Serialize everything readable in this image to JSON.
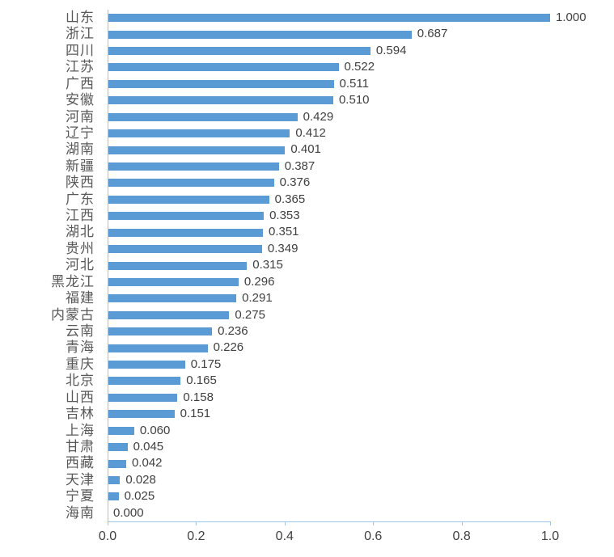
{
  "chart_data": {
    "type": "bar",
    "orientation": "horizontal",
    "title": "",
    "xlabel": "",
    "ylabel": "",
    "categories": [
      "山东",
      "浙江",
      "四川",
      "江苏",
      "广西",
      "安徽",
      "河南",
      "辽宁",
      "湖南",
      "新疆",
      "陕西",
      "广东",
      "江西",
      "湖北",
      "贵州",
      "河北",
      "黑龙江",
      "福建",
      "内蒙古",
      "云南",
      "青海",
      "重庆",
      "北京",
      "山西",
      "吉林",
      "上海",
      "甘肃",
      "西藏",
      "天津",
      "宁夏",
      "海南"
    ],
    "values": [
      1.0,
      0.687,
      0.594,
      0.522,
      0.511,
      0.51,
      0.429,
      0.412,
      0.401,
      0.387,
      0.376,
      0.365,
      0.353,
      0.351,
      0.349,
      0.315,
      0.296,
      0.291,
      0.275,
      0.236,
      0.226,
      0.175,
      0.165,
      0.158,
      0.151,
      0.06,
      0.045,
      0.042,
      0.028,
      0.025,
      0.0
    ],
    "value_labels": [
      "1.000",
      "0.687",
      "0.594",
      "0.522",
      "0.511",
      "0.510",
      "0.429",
      "0.412",
      "0.401",
      "0.387",
      "0.376",
      "0.365",
      "0.353",
      "0.351",
      "0.349",
      "0.315",
      "0.296",
      "0.291",
      "0.275",
      "0.236",
      "0.226",
      "0.175",
      "0.165",
      "0.158",
      "0.151",
      "0.060",
      "0.045",
      "0.042",
      "0.028",
      "0.025",
      "0.000"
    ],
    "xlim": [
      0.0,
      1.0
    ],
    "x_ticks": [
      0.0,
      0.2,
      0.4,
      0.6,
      0.8,
      1.0
    ],
    "x_tick_labels": [
      "0.0",
      "0.2",
      "0.4",
      "0.6",
      "0.8",
      "1.0"
    ],
    "grid": false,
    "legend": "none",
    "colors": {
      "bar": "#5B9BD5",
      "axis": "#9DC3E6",
      "category_label": "#595959",
      "value_label": "#404040",
      "tick_label": "#404040",
      "background": "#FFFFFF"
    }
  }
}
